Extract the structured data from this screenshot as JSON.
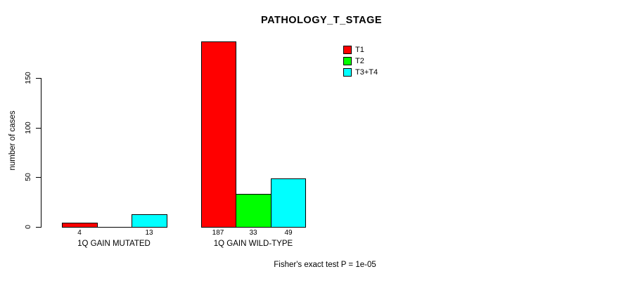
{
  "chart_data": {
    "type": "bar",
    "title": "PATHOLOGY_T_STAGE",
    "ylabel": "number of cases",
    "xlabel": "",
    "yticks": [
      0,
      50,
      100,
      150
    ],
    "ylim": [
      0,
      190
    ],
    "grid": false,
    "legend_position": "top-right",
    "categories": [
      "1Q GAIN MUTATED",
      "1Q GAIN WILD-TYPE"
    ],
    "series": [
      {
        "name": "T1",
        "color": "#ff0000",
        "values": [
          4,
          187
        ]
      },
      {
        "name": "T2",
        "color": "#00ff00",
        "values": [
          0,
          33
        ]
      },
      {
        "name": "T3+T4",
        "color": "#00ffff",
        "values": [
          13,
          49
        ]
      }
    ],
    "bar_value_labels": [
      [
        "4",
        "",
        "13"
      ],
      [
        "187",
        "33",
        "49"
      ]
    ],
    "footnote": "Fisher's exact test P = 1e-05"
  },
  "colors": {
    "background": "#ffffff",
    "axis": "#000000",
    "text": "#000000"
  }
}
